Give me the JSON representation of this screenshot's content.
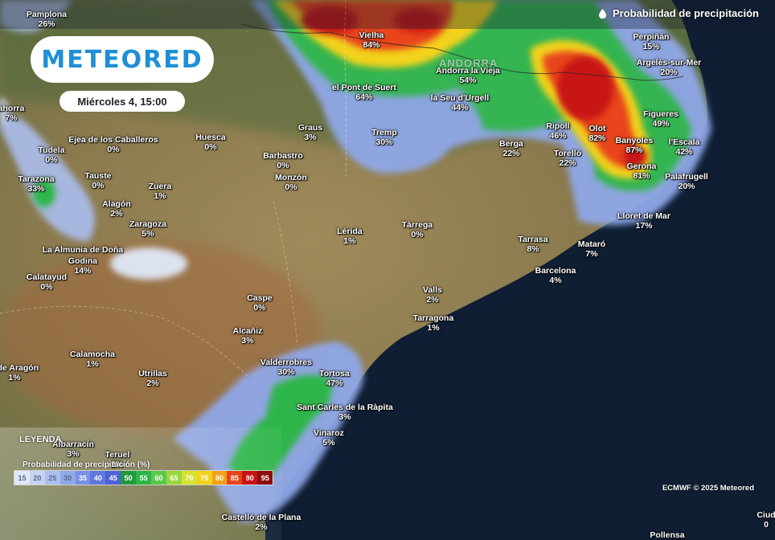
{
  "header": {
    "title": "Probabilidad de precipitación",
    "icon": "drop-icon"
  },
  "logo": {
    "text": "METEORED"
  },
  "date_label": "Miércoles 4, 15:00",
  "region_label": "ANDORRA",
  "places": [
    {
      "name": "Pamplona",
      "pct": "26%"
    },
    {
      "name": "Vielha",
      "pct": "84%"
    },
    {
      "name": "Perpiñán",
      "pct": "15%"
    },
    {
      "name": "Argelès-sur-Mer",
      "pct": "20%"
    },
    {
      "name": "Andorra la Vieja",
      "pct": "54%"
    },
    {
      "name": "el Pont de Suert",
      "pct": "64%"
    },
    {
      "name": "la Seu d'Urgell",
      "pct": "44%"
    },
    {
      "name": "Graus",
      "pct": "3%"
    },
    {
      "name": "Tremp",
      "pct": "30%"
    },
    {
      "name": "Ripoll",
      "pct": "46%"
    },
    {
      "name": "Olot",
      "pct": "82%"
    },
    {
      "name": "Figueres",
      "pct": "49%"
    },
    {
      "name": "Banyoles",
      "pct": "87%"
    },
    {
      "name": "l'Escala",
      "pct": "42%"
    },
    {
      "name": "Berga",
      "pct": "22%"
    },
    {
      "name": "Torelló",
      "pct": "22%"
    },
    {
      "name": "Gerona",
      "pct": "81%"
    },
    {
      "name": "Palafrugell",
      "pct": "20%"
    },
    {
      "name": "Lloret de Mar",
      "pct": "17%"
    },
    {
      "name": "Tudela",
      "pct": "0%"
    },
    {
      "name": "Ejea de los Caballeros",
      "pct": "0%"
    },
    {
      "name": "Huesca",
      "pct": "0%"
    },
    {
      "name": "Barbastro",
      "pct": "0%"
    },
    {
      "name": "Monzón",
      "pct": "0%"
    },
    {
      "name": "Tarazona",
      "pct": "33%"
    },
    {
      "name": "Tauste",
      "pct": "0%"
    },
    {
      "name": "Zuera",
      "pct": "1%"
    },
    {
      "name": "Alagón",
      "pct": "2%"
    },
    {
      "name": "Zaragoza",
      "pct": "5%"
    },
    {
      "name": "Lérida",
      "pct": "1%"
    },
    {
      "name": "Tàrrega",
      "pct": "0%"
    },
    {
      "name": "Tarrasa",
      "pct": "8%"
    },
    {
      "name": "Mataró",
      "pct": "7%"
    },
    {
      "name": "Barcelona",
      "pct": "4%"
    },
    {
      "name": "La Almunia de Doña",
      "pct": ""
    },
    {
      "name": "Godina",
      "pct": "14%"
    },
    {
      "name": "Calatayud",
      "pct": "0%"
    },
    {
      "name": "Caspe",
      "pct": "0%"
    },
    {
      "name": "Valls",
      "pct": "2%"
    },
    {
      "name": "Tarragona",
      "pct": "1%"
    },
    {
      "name": "Alcañiz",
      "pct": "3%"
    },
    {
      "name": "Calamocha",
      "pct": "1%"
    },
    {
      "name": "a de Aragón",
      "pct": "1%"
    },
    {
      "name": "Utrillas",
      "pct": "2%"
    },
    {
      "name": "Valderrobres",
      "pct": "30%"
    },
    {
      "name": "Tortosa",
      "pct": "47%"
    },
    {
      "name": "Sant Carles de la Ràpita",
      "pct": "3%"
    },
    {
      "name": "Vinaroz",
      "pct": "5%"
    },
    {
      "name": "Albarracín",
      "pct": "3%"
    },
    {
      "name": "Teruel",
      "pct": "2%"
    },
    {
      "name": "Castelló de la Plana",
      "pct": "2%"
    },
    {
      "name": "Pollensa",
      "pct": ""
    },
    {
      "name": "Ciud",
      "pct": "0"
    },
    {
      "name": "ahorra",
      "pct": "7%"
    }
  ],
  "legend": {
    "heading": "LEYENDA",
    "subtitle": "Probabilidad de precipitación (%)",
    "steps": [
      {
        "label": "15",
        "color": "#dfe8f8"
      },
      {
        "label": "20",
        "color": "#c6d4f3"
      },
      {
        "label": "25",
        "color": "#abbeee"
      },
      {
        "label": "30",
        "color": "#8fa8e8"
      },
      {
        "label": "35",
        "color": "#7690e3"
      },
      {
        "label": "40",
        "color": "#5e78dd"
      },
      {
        "label": "45",
        "color": "#4c62d6"
      },
      {
        "label": "50",
        "color": "#1f9a3a"
      },
      {
        "label": "55",
        "color": "#2eb548"
      },
      {
        "label": "60",
        "color": "#5cc84a"
      },
      {
        "label": "65",
        "color": "#9ad640"
      },
      {
        "label": "70",
        "color": "#d6e234"
      },
      {
        "label": "75",
        "color": "#f2d21d"
      },
      {
        "label": "80",
        "color": "#f4a11a"
      },
      {
        "label": "85",
        "color": "#e8441c"
      },
      {
        "label": "90",
        "color": "#c81414"
      },
      {
        "label": "95",
        "color": "#8e0c0c"
      }
    ]
  },
  "credit": "ECMWF © 2025 Meteored",
  "colors": {
    "sea": "#0f1e33",
    "land": "#8a7a52",
    "brand": "#1e8fd6"
  }
}
